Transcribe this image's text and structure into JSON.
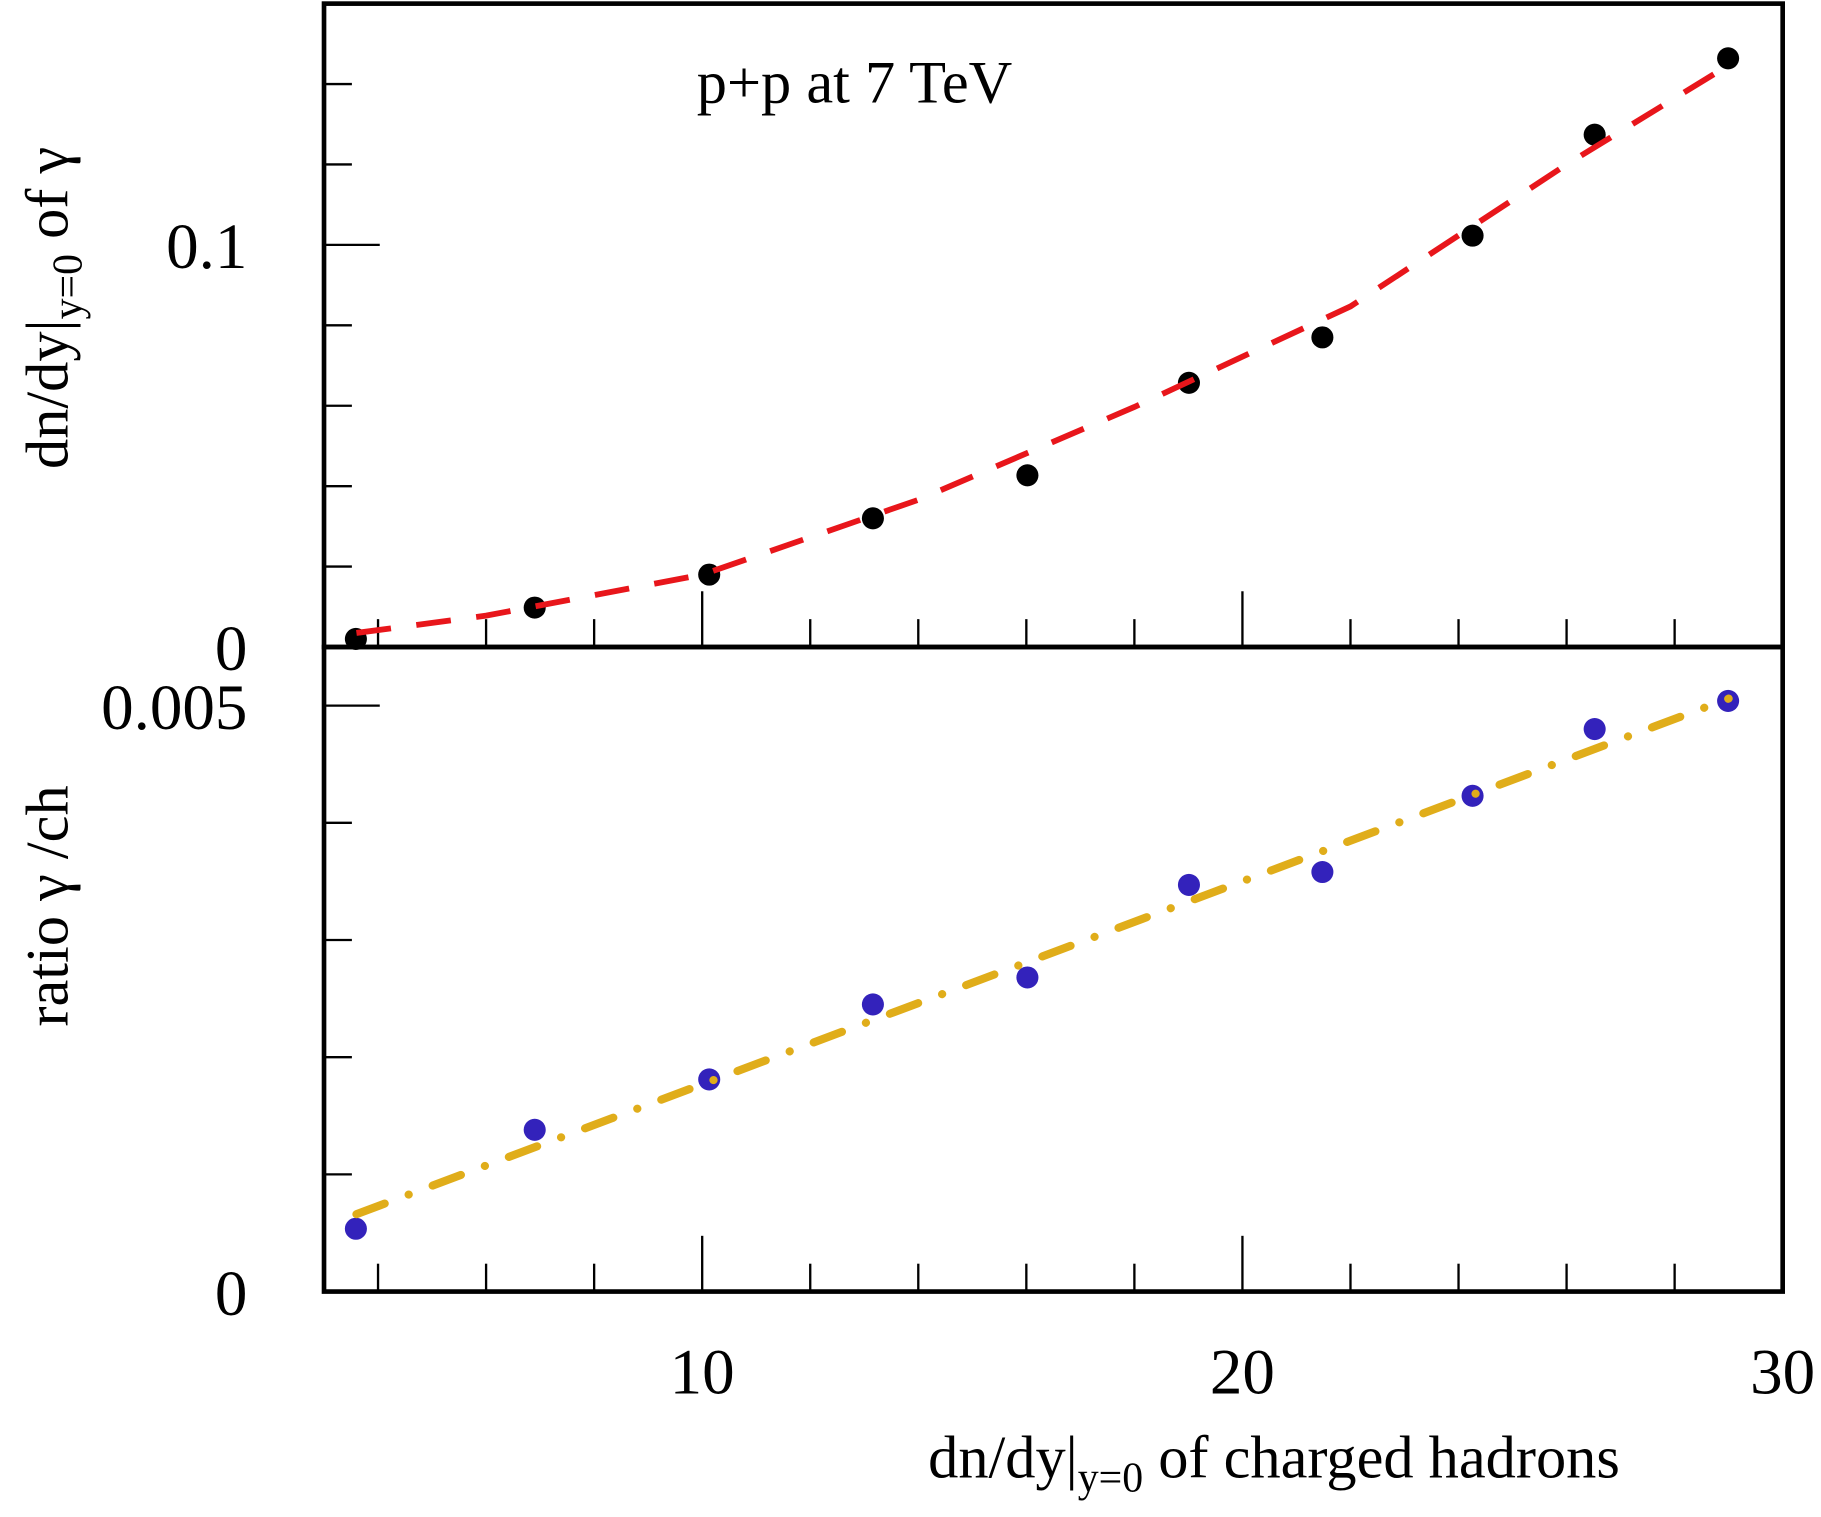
{
  "chart_data": [
    {
      "type": "scatter",
      "annotation": "p+p at 7 TeV",
      "y_label": {
        "main": "dn/dy|",
        "sub": "y=0",
        "tail": "  of γ"
      },
      "xlim": [
        3,
        30
      ],
      "x_minor_ticks": [
        4,
        6,
        8,
        12,
        14,
        16,
        18,
        22,
        24,
        26,
        28
      ],
      "x_major_ticks": [
        10,
        20,
        30
      ],
      "ylim": [
        0,
        0.16
      ],
      "yticks": [
        0,
        0.1
      ],
      "y_minor_ticks": [
        0.02,
        0.04,
        0.06,
        0.08,
        0.12,
        0.14
      ],
      "series": [
        {
          "style": "markers",
          "color": "#000000",
          "x": [
            3.59,
            6.9,
            10.13,
            13.16,
            16.02,
            19.01,
            21.48,
            24.26,
            26.52,
            28.99
          ],
          "values": [
            0.002,
            0.0098,
            0.018,
            0.032,
            0.0427,
            0.0657,
            0.077,
            0.1023,
            0.1274,
            0.1464
          ]
        },
        {
          "style": "dashed-line",
          "color": "#e8161b",
          "x": [
            3.6,
            6,
            10,
            14,
            18,
            22,
            26,
            29
          ],
          "values": [
            0.0035,
            0.0078,
            0.018,
            0.0366,
            0.0597,
            0.0847,
            0.12,
            0.1447
          ]
        }
      ]
    },
    {
      "type": "scatter",
      "y_label": "ratio  γ /ch",
      "x_label": {
        "main": "dn/dy|",
        "sub": "y=0",
        "tail": "  of charged hadrons"
      },
      "xlim": [
        3,
        30
      ],
      "xticks": [
        10,
        20,
        30
      ],
      "x_minor_ticks": [
        4,
        6,
        8,
        12,
        14,
        16,
        18,
        22,
        24,
        26,
        28
      ],
      "ylim": [
        0,
        0.0055
      ],
      "yticks": [
        0,
        0.005
      ],
      "y_minor_ticks": [
        0.001,
        0.002,
        0.003,
        0.004
      ],
      "series": [
        {
          "style": "markers",
          "color": "#3322bb",
          "x": [
            3.59,
            6.9,
            10.13,
            13.16,
            16.02,
            19.01,
            21.48,
            24.26,
            26.52,
            28.99
          ],
          "values": [
            0.000536,
            0.00138,
            0.00181,
            0.00245,
            0.00268,
            0.00347,
            0.00358,
            0.00423,
            0.0048,
            0.00504
          ]
        },
        {
          "style": "dash-dot-line",
          "color": "#e0ad1a",
          "x": [
            3.6,
            29
          ],
          "values": [
            0.00066,
            0.00506
          ]
        }
      ]
    }
  ]
}
